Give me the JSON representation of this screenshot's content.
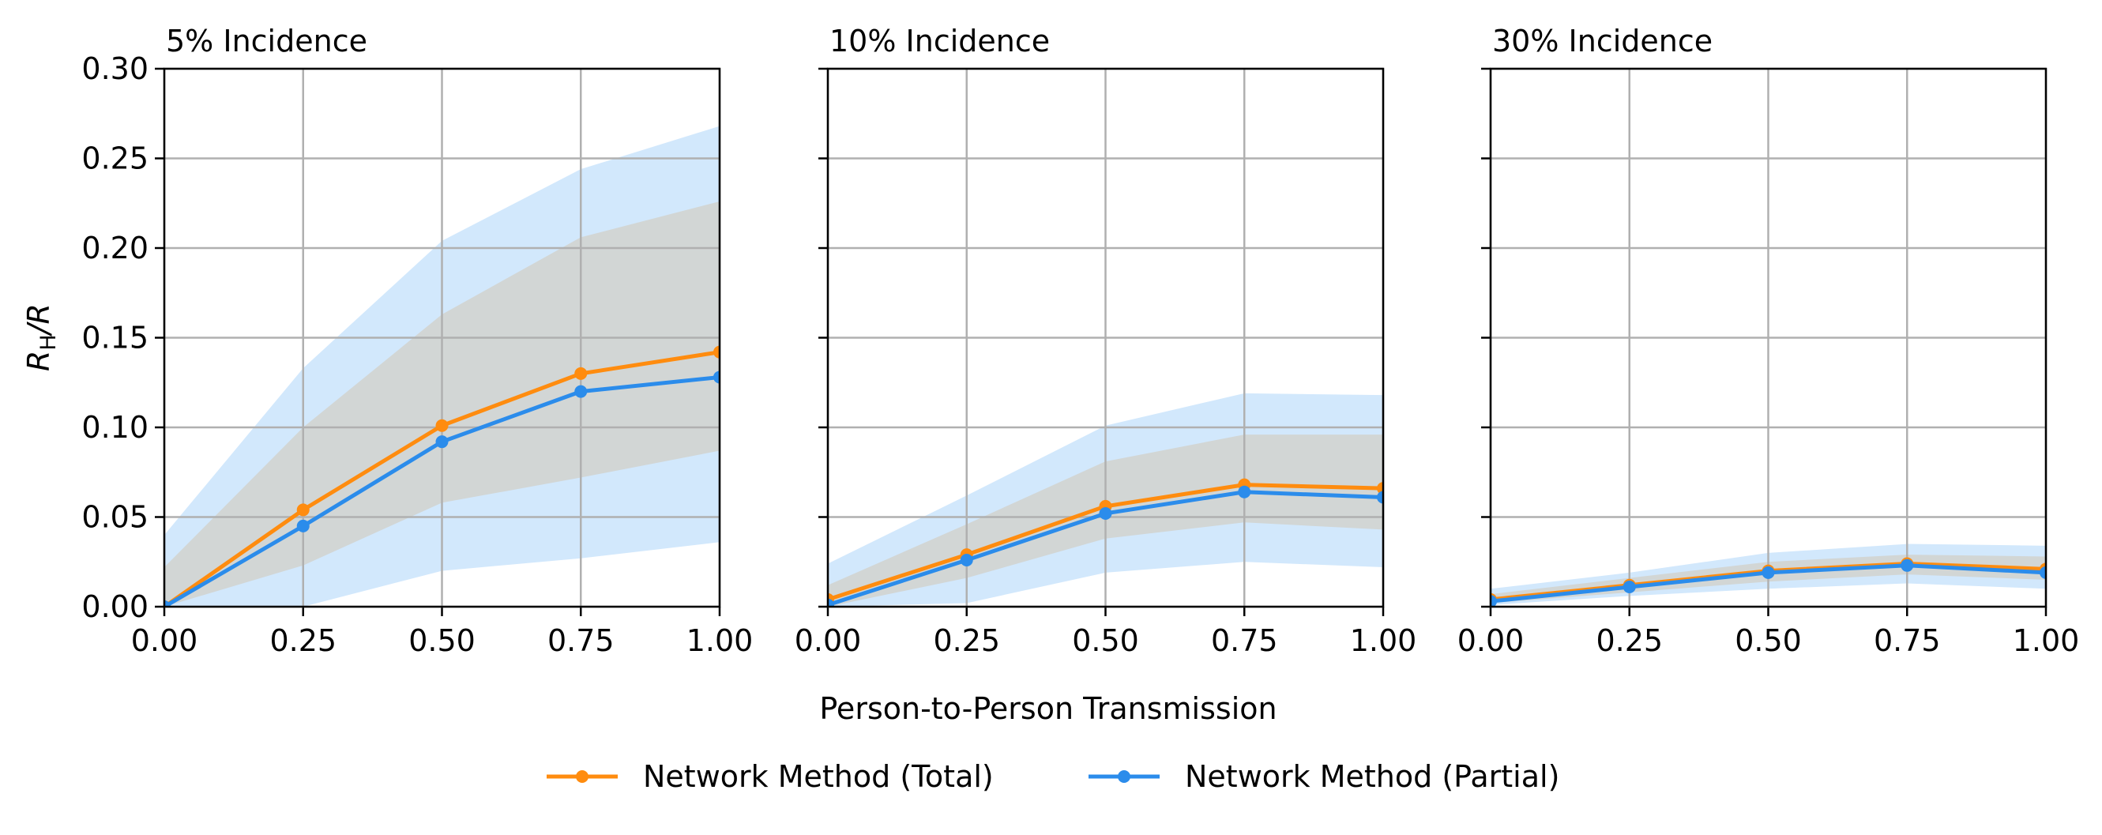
{
  "chart_data": {
    "type": "line",
    "xlabel": "Person-to-Person Transmission",
    "ylabel": "R_H/R",
    "ylabel_main": "R",
    "ylabel_sub": "H",
    "ylabel_tail": "/R",
    "xlim": [
      0,
      1
    ],
    "ylim": [
      0,
      0.3
    ],
    "x_ticks": [
      0,
      0.25,
      0.5,
      0.75,
      1
    ],
    "x_tick_labels": [
      "0.00",
      "0.25",
      "0.50",
      "0.75",
      "1.00"
    ],
    "y_ticks": [
      0,
      0.05,
      0.1,
      0.15,
      0.2,
      0.25,
      0.3
    ],
    "y_tick_labels": [
      "0.00",
      "0.05",
      "0.10",
      "0.15",
      "0.20",
      "0.25",
      "0.30"
    ],
    "grid": true,
    "legend_position": "bottom-center",
    "colors": {
      "total_line": "#ff8c0f",
      "partial_line": "#2b8ceb",
      "partial_band": "#d2e8fc",
      "total_band": "#d2d6d5",
      "grid": "#b0b0b0"
    },
    "series_meta": [
      {
        "key": "total",
        "name": "Network Method (Total)"
      },
      {
        "key": "partial",
        "name": "Network Method (Partial)"
      }
    ],
    "panels": [
      {
        "title": "5% Incidence",
        "x": [
          0,
          0.25,
          0.5,
          0.75,
          1
        ],
        "total": [
          0.0,
          0.054,
          0.101,
          0.13,
          0.142
        ],
        "partial": [
          0.0,
          0.045,
          0.092,
          0.12,
          0.128
        ],
        "total_band_lower": [
          0.0,
          0.023,
          0.058,
          0.072,
          0.087
        ],
        "total_band_upper": [
          0.022,
          0.1,
          0.163,
          0.206,
          0.226
        ],
        "partial_band_lower": [
          0.0,
          0.0,
          0.02,
          0.027,
          0.036
        ],
        "partial_band_upper": [
          0.04,
          0.133,
          0.204,
          0.244,
          0.268
        ]
      },
      {
        "title": "10% Incidence",
        "x": [
          0,
          0.25,
          0.5,
          0.75,
          1
        ],
        "total": [
          0.004,
          0.029,
          0.056,
          0.068,
          0.066
        ],
        "partial": [
          0.001,
          0.026,
          0.052,
          0.064,
          0.061
        ],
        "total_band_lower": [
          0.0,
          0.016,
          0.038,
          0.047,
          0.043
        ],
        "total_band_upper": [
          0.012,
          0.046,
          0.081,
          0.096,
          0.096
        ],
        "partial_band_lower": [
          0.0,
          0.002,
          0.019,
          0.025,
          0.022
        ],
        "partial_band_upper": [
          0.024,
          0.062,
          0.101,
          0.119,
          0.118
        ]
      },
      {
        "title": "30% Incidence",
        "x": [
          0,
          0.25,
          0.5,
          0.75,
          1
        ],
        "total": [
          0.004,
          0.012,
          0.02,
          0.024,
          0.021
        ],
        "partial": [
          0.003,
          0.011,
          0.019,
          0.023,
          0.019
        ],
        "total_band_lower": [
          0.002,
          0.008,
          0.014,
          0.018,
          0.015
        ],
        "total_band_upper": [
          0.007,
          0.016,
          0.025,
          0.029,
          0.028
        ],
        "partial_band_lower": [
          0.001,
          0.006,
          0.01,
          0.013,
          0.01
        ],
        "partial_band_upper": [
          0.01,
          0.019,
          0.03,
          0.035,
          0.034
        ]
      }
    ]
  }
}
